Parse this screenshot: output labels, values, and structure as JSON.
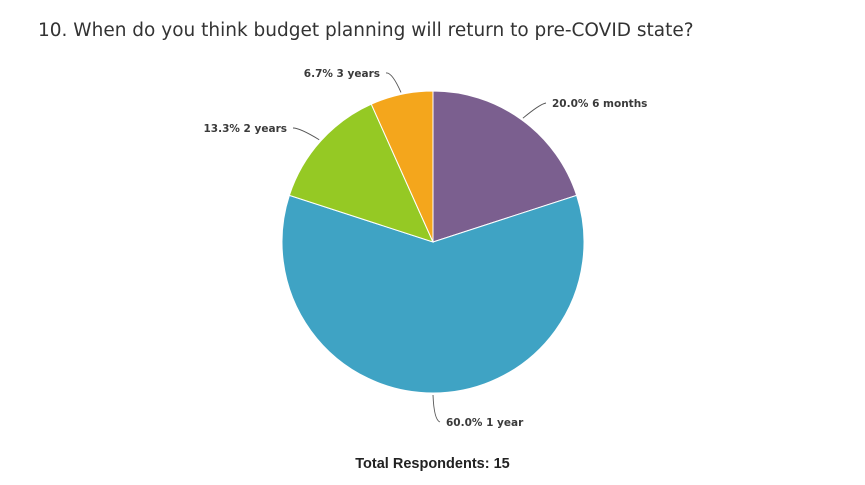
{
  "question": {
    "title": "10. When do you think budget planning will return to pre-COVID state?"
  },
  "chart_data": {
    "type": "pie",
    "title": "10. When do you think budget planning will return to pre-COVID state?",
    "slices": [
      {
        "category": "6 months",
        "percent": 20.0,
        "percent_label": "20.0%",
        "color": "#7b5f8f",
        "label": "20.0% 6 months"
      },
      {
        "category": "1 year",
        "percent": 60.0,
        "percent_label": "60.0%",
        "color": "#3fa3c4",
        "label": "60.0% 1 year"
      },
      {
        "category": "2 years",
        "percent": 13.3,
        "percent_label": "13.3%",
        "color": "#95c924",
        "label": "13.3% 2 years"
      },
      {
        "category": "3 years",
        "percent": 6.7,
        "percent_label": "6.7%",
        "color": "#f4a61c",
        "label": "6.7% 3 years"
      }
    ],
    "start": "top, clockwise"
  },
  "footer": {
    "respondents_label": "Total Respondents: 15"
  }
}
